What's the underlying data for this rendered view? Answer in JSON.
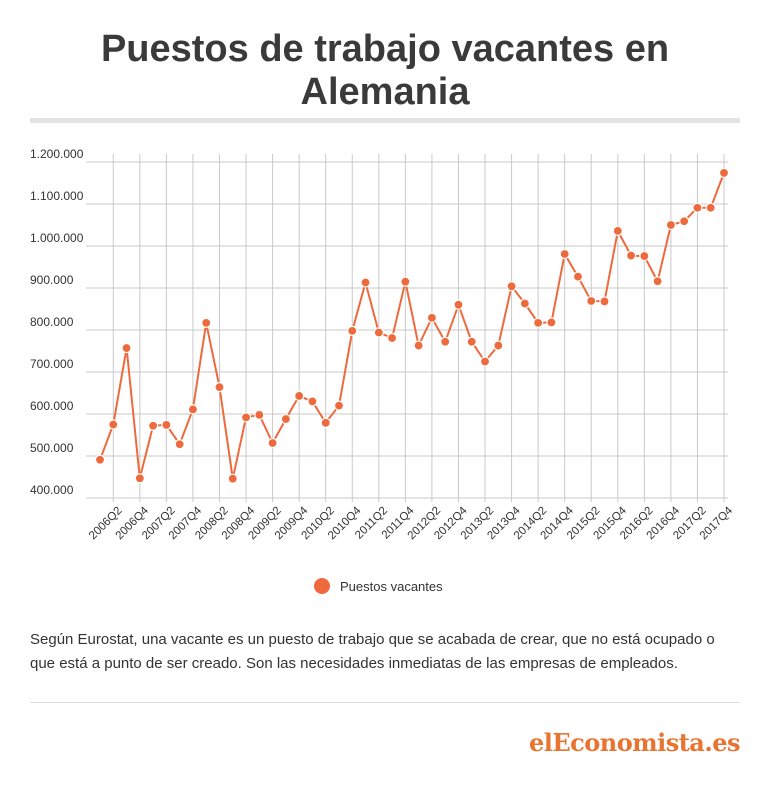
{
  "title": "Puestos de trabajo vacantes en Alemania",
  "note": "Según Eurostat, una vacante es un puesto de trabajo que se acabada de crear, que no está ocupado o que está a punto de ser creado. Son las necesidades inmediatas de las empresas de empleados.",
  "brand": "elEconomista.es",
  "colors": {
    "series": "#ee6a3c",
    "grid": "#c9c9c9",
    "brand": "#e8742f"
  },
  "chart_data": {
    "type": "line",
    "title": "",
    "xlabel": "",
    "ylabel": "",
    "ylim": [
      400000,
      1200000
    ],
    "yticks": [
      400000,
      500000,
      600000,
      700000,
      800000,
      900000,
      1000000,
      1100000,
      1200000
    ],
    "ytick_labels": [
      "400.000",
      "500.000",
      "600.000",
      "700.000",
      "800.000",
      "900.000",
      "1.000.000",
      "1.100.000",
      "1.200.000"
    ],
    "grid": true,
    "legend_position": "bottom-center",
    "x": [
      "2006Q1",
      "2006Q2",
      "2006Q3",
      "2006Q4",
      "2007Q1",
      "2007Q2",
      "2007Q3",
      "2007Q4",
      "2008Q1",
      "2008Q2",
      "2008Q3",
      "2008Q4",
      "2009Q1",
      "2009Q2",
      "2009Q3",
      "2009Q4",
      "2010Q1",
      "2010Q2",
      "2010Q3",
      "2010Q4",
      "2011Q1",
      "2011Q2",
      "2011Q3",
      "2011Q4",
      "2012Q1",
      "2012Q2",
      "2012Q3",
      "2012Q4",
      "2013Q1",
      "2013Q2",
      "2013Q3",
      "2013Q4",
      "2014Q1",
      "2014Q2",
      "2014Q3",
      "2014Q4",
      "2015Q1",
      "2015Q2",
      "2015Q3",
      "2015Q4",
      "2016Q1",
      "2016Q2",
      "2016Q3",
      "2016Q4",
      "2017Q1",
      "2017Q2",
      "2017Q3",
      "2017Q4"
    ],
    "x_tick_labels": [
      "2006Q2",
      "2006Q4",
      "2007Q2",
      "2007Q4",
      "2008Q2",
      "2008Q4",
      "2009Q2",
      "2009Q4",
      "2010Q2",
      "2010Q4",
      "2011Q2",
      "2011Q4",
      "2012Q2",
      "2012Q4",
      "2013Q2",
      "2013Q4",
      "2014Q2",
      "2014Q4",
      "2015Q2",
      "2015Q4",
      "2016Q2",
      "2016Q4",
      "2017Q2",
      "2017Q4"
    ],
    "series": [
      {
        "name": "Puestos vacantes",
        "values": [
          491000,
          575000,
          757000,
          447000,
          572000,
          574000,
          528000,
          611000,
          817000,
          664000,
          446000,
          592000,
          598000,
          531000,
          588000,
          643000,
          630000,
          579000,
          620000,
          798000,
          913000,
          794000,
          781000,
          915000,
          763000,
          829000,
          772000,
          860000,
          772000,
          725000,
          763000,
          904000,
          863000,
          817000,
          818000,
          981000,
          927000,
          869000,
          868000,
          1036000,
          977000,
          976000,
          916000,
          1050000,
          1059000,
          1091000,
          1091000,
          1174000
        ]
      }
    ]
  }
}
